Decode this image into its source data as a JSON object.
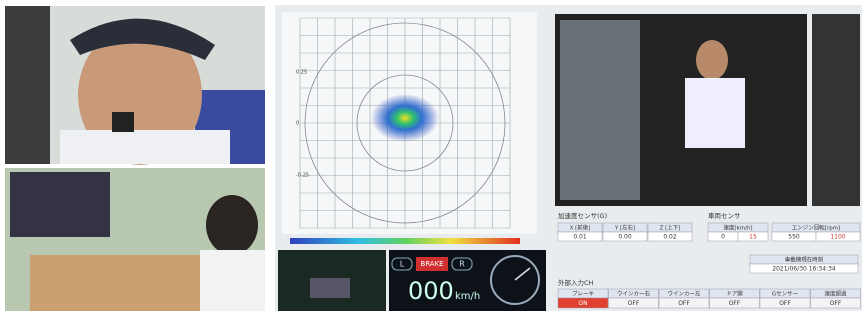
{
  "plot": {
    "ticks": [
      "0.25",
      "0",
      "-0.25"
    ]
  },
  "speed_display": {
    "left": "L",
    "brake": "BRAKE",
    "right": "R",
    "value": "000",
    "unit": "km/h"
  },
  "accel_panel": {
    "title": "加速度センサ(G)",
    "headers": [
      "X [前後]",
      "Y [左右]",
      "Z [上下]"
    ],
    "values": [
      "0.01",
      "0.00",
      "0.02"
    ]
  },
  "vehicle_panel": {
    "title": "車両センサ",
    "speed_label": "速度[km/h]",
    "speed": [
      "0",
      "15"
    ],
    "rpm_label": "エンジン回転[rpm]",
    "rpm": [
      "550",
      "1100"
    ]
  },
  "clock": {
    "label": "車載機現在時刻",
    "value": "2021/06/30 16:34:34"
  },
  "external_input": {
    "title": "外部入力CH",
    "labels": [
      "ブレーキ",
      "ウインカー右",
      "ウインカー左",
      "ドア開",
      "Gセンサー",
      "速度超過"
    ],
    "states": [
      "ON",
      "OFF",
      "OFF",
      "OFF",
      "OFF",
      "OFF"
    ]
  }
}
